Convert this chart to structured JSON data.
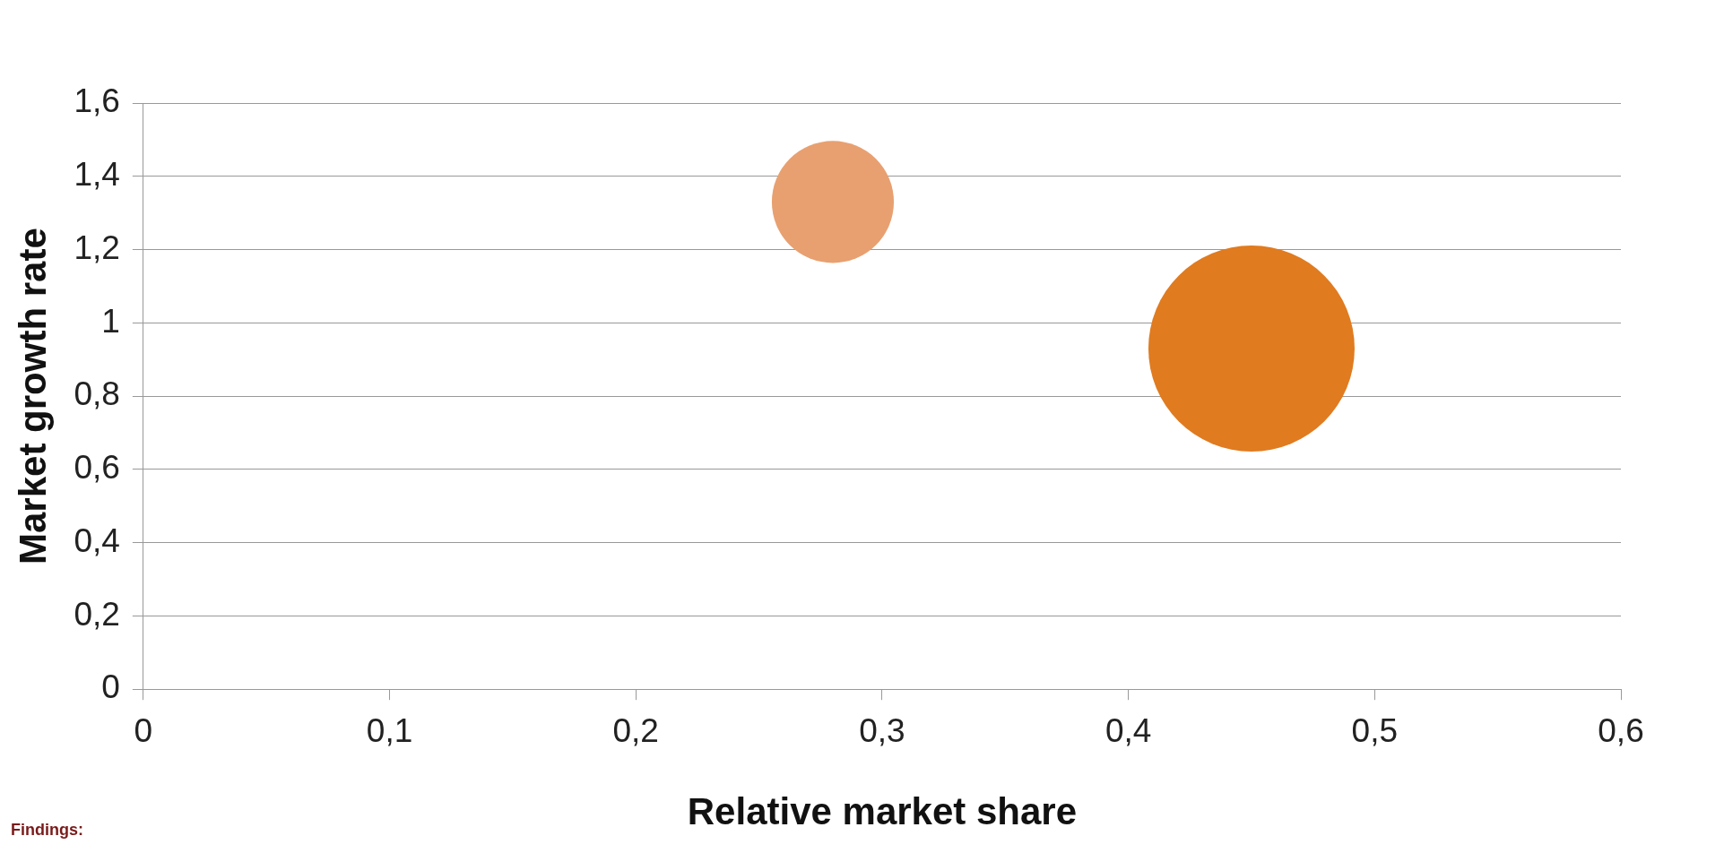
{
  "chart_data": {
    "type": "bubble",
    "xlabel": "Relative market share",
    "ylabel": "Market growth rate",
    "x": [
      0.28,
      0.45
    ],
    "values": [
      1.33,
      0.93
    ],
    "sizes": [
      0.35,
      1
    ],
    "colors": [
      "#e8a070",
      "#e07b20"
    ],
    "xlim": [
      0,
      0.6
    ],
    "xticks": [
      {
        "value": 0,
        "label": "0"
      },
      {
        "value": 0.1,
        "label": "0,1"
      },
      {
        "value": 0.2,
        "label": "0,2"
      },
      {
        "value": 0.3,
        "label": "0,3"
      },
      {
        "value": 0.4,
        "label": "0,4"
      },
      {
        "value": 0.5,
        "label": "0,5"
      },
      {
        "value": 0.6,
        "label": "0,6"
      }
    ],
    "ylim": [
      0,
      1.6
    ],
    "yticks": [
      {
        "value": 0,
        "label": "0"
      },
      {
        "value": 0.2,
        "label": "0,2"
      },
      {
        "value": 0.4,
        "label": "0,4"
      },
      {
        "value": 0.6,
        "label": "0,6"
      },
      {
        "value": 0.8,
        "label": "0,8"
      },
      {
        "value": 1,
        "label": "1"
      },
      {
        "value": 1.2,
        "label": "1,2"
      },
      {
        "value": 1.4,
        "label": "1,4"
      },
      {
        "value": 1.6,
        "label": "1,6"
      }
    ],
    "grid": "y",
    "legend": false,
    "annotations": [
      "Findings:"
    ]
  }
}
